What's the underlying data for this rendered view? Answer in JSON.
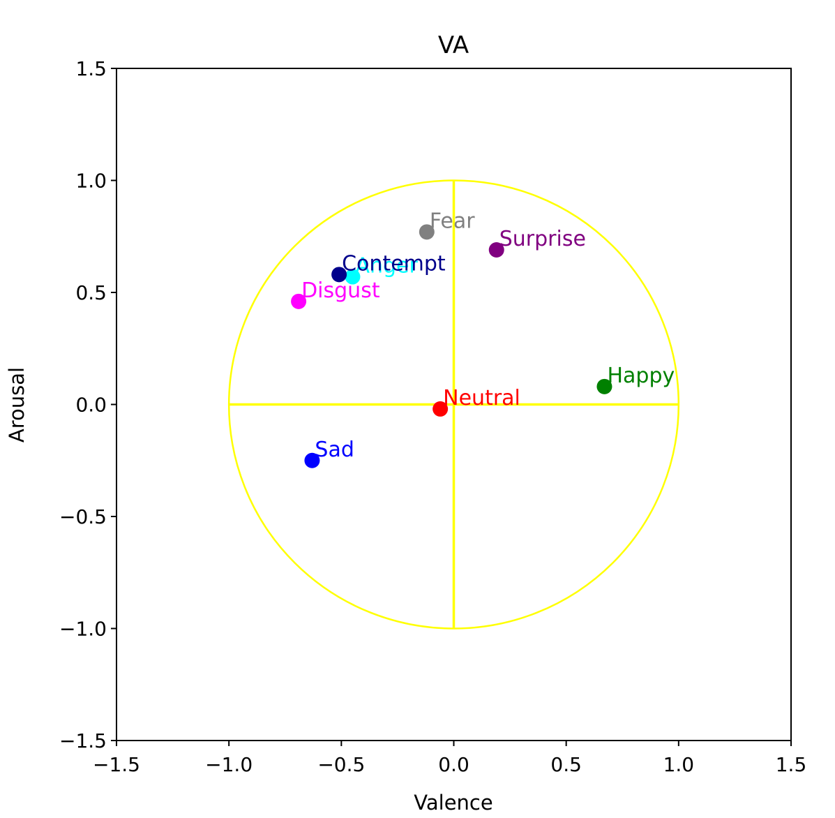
{
  "chart_data": {
    "type": "scatter",
    "title": "VA",
    "xlabel": "Valence",
    "ylabel": "Arousal",
    "xlim": [
      -1.5,
      1.5
    ],
    "ylim": [
      -1.5,
      1.5
    ],
    "xticks": [
      -1.5,
      -1.0,
      -0.5,
      0.0,
      0.5,
      1.0,
      1.5
    ],
    "yticks": [
      -1.5,
      -1.0,
      -0.5,
      0.0,
      0.5,
      1.0,
      1.5
    ],
    "xtick_labels": [
      "−1.5",
      "−1.0",
      "−0.5",
      "0.0",
      "0.5",
      "1.0",
      "1.5"
    ],
    "ytick_labels": [
      "−1.5",
      "−1.0",
      "−0.5",
      "0.0",
      "0.5",
      "1.0",
      "1.5"
    ],
    "grid": false,
    "legend": false,
    "reference_circle": {
      "center": [
        0,
        0
      ],
      "radius": 1.0,
      "color": "#ffff00"
    },
    "reference_axes_color": "#ffff00",
    "points": [
      {
        "label": "Neutral",
        "x": -0.06,
        "y": -0.02,
        "color": "#ff0000"
      },
      {
        "label": "Happy",
        "x": 0.67,
        "y": 0.08,
        "color": "#008000"
      },
      {
        "label": "Sad",
        "x": -0.63,
        "y": -0.25,
        "color": "#0000ff"
      },
      {
        "label": "Surprise",
        "x": 0.19,
        "y": 0.69,
        "color": "#800080"
      },
      {
        "label": "Fear",
        "x": -0.12,
        "y": 0.77,
        "color": "#808080"
      },
      {
        "label": "Disgust",
        "x": -0.69,
        "y": 0.46,
        "color": "#ff00ff"
      },
      {
        "label": "Anger",
        "x": -0.45,
        "y": 0.57,
        "color": "#00ffff"
      },
      {
        "label": "Contempt",
        "x": -0.51,
        "y": 0.58,
        "color": "#00008b"
      }
    ]
  }
}
